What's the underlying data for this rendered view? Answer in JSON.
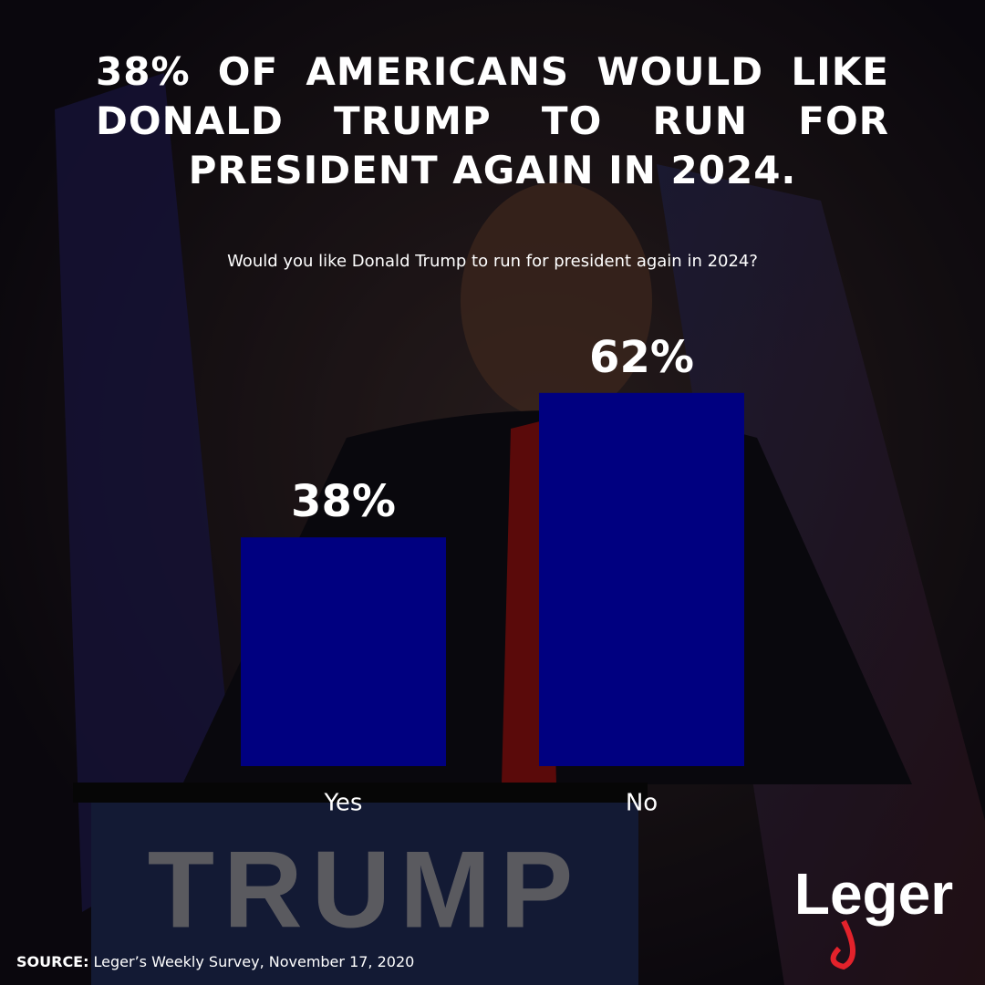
{
  "chart_data": {
    "type": "bar",
    "title": "38% OF AMERICANS WOULD LIKE DONALD TRUMP TO RUN FOR PRESIDENT AGAIN IN 2024.",
    "subtitle": "Would you like Donald Trump to run for president again in 2024?",
    "categories": [
      "Yes",
      "No"
    ],
    "values": [
      38,
      62
    ],
    "value_labels": [
      "38%",
      "62%"
    ],
    "color": "#000080"
  },
  "source": {
    "label": "SOURCE:",
    "text": "Leger’s Weekly Survey, November 17, 2020"
  },
  "logo": "Leger",
  "photo": {
    "sign": "TRUMP"
  }
}
